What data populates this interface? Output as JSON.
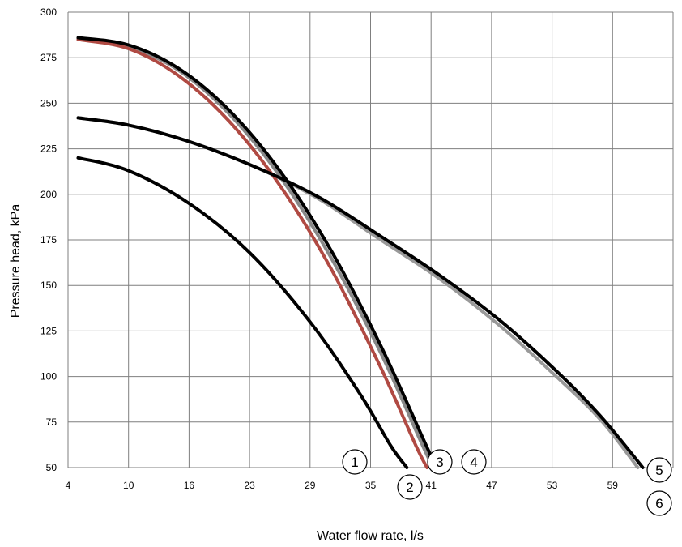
{
  "chart_data": {
    "type": "line",
    "title": "",
    "xlabel": "Water flow rate, l/s",
    "ylabel": "Pressure head, kPa",
    "xlim": [
      4,
      64
    ],
    "ylim": [
      50,
      300
    ],
    "x_ticks": [
      "4",
      "10",
      "16",
      "23",
      "29",
      "35",
      "41",
      "47",
      "53",
      "59"
    ],
    "y_ticks": [
      "50",
      "75",
      "100",
      "125",
      "150",
      "175",
      "200",
      "225",
      "250",
      "275",
      "300"
    ],
    "grid": true,
    "series": [
      {
        "name": "1",
        "color": "#000000",
        "points": [
          [
            5,
            220
          ],
          [
            10,
            213
          ],
          [
            16,
            195
          ],
          [
            22,
            168
          ],
          [
            28,
            130
          ],
          [
            33,
            90
          ],
          [
            36,
            62
          ],
          [
            37.6,
            50
          ]
        ]
      },
      {
        "name": "2",
        "color": "#b04a43",
        "points": [
          [
            5,
            285
          ],
          [
            10,
            280
          ],
          [
            15,
            265
          ],
          [
            20,
            240
          ],
          [
            25,
            205
          ],
          [
            30,
            160
          ],
          [
            35,
            105
          ],
          [
            38.5,
            62
          ],
          [
            39.6,
            50
          ]
        ]
      },
      {
        "name": "3",
        "color": "#888888",
        "points": [
          [
            5,
            285
          ],
          [
            10,
            281
          ],
          [
            15,
            268
          ],
          [
            20,
            244
          ],
          [
            25,
            210
          ],
          [
            30,
            166
          ],
          [
            35,
            113
          ],
          [
            39,
            64
          ],
          [
            40.2,
            50
          ]
        ]
      },
      {
        "name": "4",
        "color": "#000000",
        "points": [
          [
            5,
            286
          ],
          [
            10,
            282
          ],
          [
            15,
            269
          ],
          [
            20,
            246
          ],
          [
            25,
            213
          ],
          [
            30,
            170
          ],
          [
            35,
            117
          ],
          [
            39.2,
            66
          ],
          [
            40.5,
            50
          ]
        ]
      },
      {
        "name": "5",
        "color": "#000000",
        "points": [
          [
            5,
            242
          ],
          [
            10,
            238
          ],
          [
            16,
            229
          ],
          [
            23,
            214
          ],
          [
            29,
            198
          ],
          [
            35,
            177
          ],
          [
            41,
            155
          ],
          [
            47,
            130
          ],
          [
            53,
            100
          ],
          [
            57,
            77
          ],
          [
            61,
            50
          ]
        ]
      },
      {
        "name": "6",
        "color": "#999999",
        "points": [
          [
            5,
            242
          ],
          [
            10,
            238
          ],
          [
            16,
            229
          ],
          [
            23,
            214
          ],
          [
            29,
            197
          ],
          [
            35,
            175
          ],
          [
            41,
            153
          ],
          [
            47,
            127
          ],
          [
            53,
            97
          ],
          [
            57,
            75
          ],
          [
            60.5,
            50
          ]
        ]
      }
    ],
    "markers": [
      {
        "label": "1"
      },
      {
        "label": "2"
      },
      {
        "label": "3"
      },
      {
        "label": "4"
      },
      {
        "label": "5"
      },
      {
        "label": "6"
      }
    ]
  }
}
